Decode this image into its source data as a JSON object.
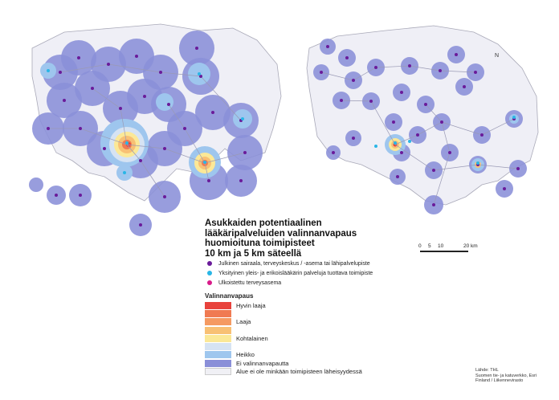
{
  "title_lines": [
    "Asukkaiden potentiaalinen",
    "lääkäripalveluiden valinnanvapaus",
    "huomioituna toimipisteet",
    "10 km ja 5 km säteellä"
  ],
  "point_types": [
    {
      "label": "Julkinen sairaala, terveyskeskus / -asema tai lähipalvelupiste",
      "color": "#6a1b9a"
    },
    {
      "label": "Yksityinen yleis- ja erikoislääkärin palveluja tuottava toimipiste",
      "color": "#29b6e6"
    },
    {
      "label": "Ulkoistettu terveysasema",
      "color": "#d81b8a"
    }
  ],
  "legend": {
    "title": "Valinnanvapaus",
    "items": [
      {
        "label": "Hyvin laaja",
        "color": "#e8423c"
      },
      {
        "label": "",
        "color": "#f07a52"
      },
      {
        "label": "Laaja",
        "color": "#f59a62"
      },
      {
        "label": "",
        "color": "#f8c074"
      },
      {
        "label": "Kohtalainen",
        "color": "#fbe897"
      },
      {
        "label": "",
        "color": "#d6e3f3"
      },
      {
        "label": "Heikko",
        "color": "#9ec6ee"
      },
      {
        "label": "Ei valinnanvapautta",
        "color": "#8a8fd8"
      },
      {
        "label": "Alue ei ole minkään toimipisteen läheisyydessä",
        "color": "#f0f0f5"
      }
    ]
  },
  "scale": {
    "ticks": [
      "0",
      "5",
      "10",
      "20 km"
    ]
  },
  "credit": [
    "Lähde: THL",
    "Suomen tie- ja katuverkko, Esri",
    "Finland / Liikennevirasto"
  ],
  "north_label": "N",
  "colors": {
    "land": "#efeff6",
    "land_stroke": "#a9a9b8",
    "buffer_10km": "#8a8fd8",
    "buffer_5km": "#9ec6ee"
  }
}
